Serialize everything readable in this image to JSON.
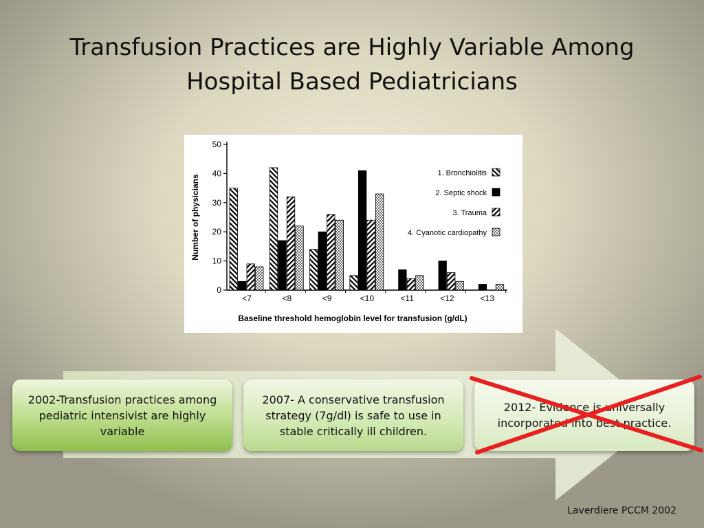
{
  "slide": {
    "title_line1": "Transfusion Practices are Highly Variable Among",
    "title_line2": "Hospital Based Pediatricians",
    "citation": "Laverdiere PCCM 2002"
  },
  "timeline": {
    "items": [
      {
        "text": "2002-Transfusion practices among pediatric intensivist are highly variable"
      },
      {
        "text": "2007- A conservative transfusion strategy (7g/dl) is safe to use in stable critically ill children."
      },
      {
        "text": "2012- Evidence is universally incorporated into best practice.",
        "crossed_out": true
      }
    ],
    "cross_color": "#e82020"
  },
  "chart_data": {
    "type": "bar",
    "categories": [
      "<7",
      "<8",
      "<9",
      "<10",
      "<11",
      "<12",
      "<13"
    ],
    "series": [
      {
        "name": "1. Bronchiolitis",
        "pattern": "diagonal-hatch-up",
        "values": [
          35,
          42,
          14,
          5,
          0,
          0,
          0
        ]
      },
      {
        "name": "2. Septic shock",
        "pattern": "solid-black",
        "values": [
          3,
          17,
          20,
          41,
          7,
          10,
          2
        ]
      },
      {
        "name": "3. Trauma",
        "pattern": "diagonal-hatch-down",
        "values": [
          9,
          32,
          26,
          24,
          4,
          6,
          0
        ]
      },
      {
        "name": "4. Cyanotic cardiopathy",
        "pattern": "dotted",
        "values": [
          8,
          22,
          24,
          33,
          5,
          3,
          2
        ]
      }
    ],
    "xlabel": "Baseline threshold hemoglobin level for transfusion (g/dL)",
    "ylabel": "Number of physicians",
    "ylim": [
      0,
      50
    ],
    "yticks": [
      "0",
      "10",
      "20",
      "30",
      "40",
      "50"
    ],
    "grid": false,
    "legend_position": "top-right"
  }
}
